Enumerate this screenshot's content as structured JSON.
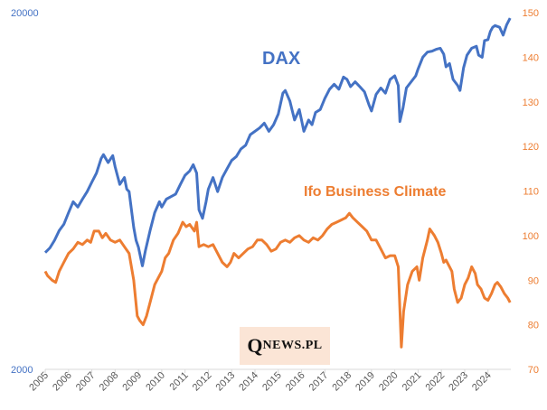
{
  "chart_data": {
    "type": "line",
    "title": "",
    "xlabel": "",
    "ylabel": "",
    "x_tick_labels": [
      "2005",
      "2006",
      "2007",
      "2008",
      "2009",
      "2010",
      "2011",
      "2012",
      "2013",
      "2014",
      "2015",
      "2016",
      "2017",
      "2018",
      "2019",
      "2020",
      "2021",
      "2022",
      "2023",
      "2024"
    ],
    "y_left": {
      "scale": "log",
      "ticks": [
        "20000",
        "2000"
      ],
      "ylim": [
        2000,
        20000
      ]
    },
    "y_right": {
      "ticks": [
        "150",
        "140",
        "130",
        "120",
        "110",
        "100",
        "90",
        "80",
        "70"
      ],
      "ylim": [
        70,
        150
      ]
    },
    "grid": false,
    "series": [
      {
        "name": "DAX",
        "axis": "left",
        "color": "#4472c4",
        "points": [
          [
            2005.0,
            4250
          ],
          [
            2005.2,
            4380
          ],
          [
            2005.4,
            4600
          ],
          [
            2005.6,
            4900
          ],
          [
            2005.8,
            5100
          ],
          [
            2006.0,
            5500
          ],
          [
            2006.2,
            5900
          ],
          [
            2006.4,
            5700
          ],
          [
            2006.6,
            6000
          ],
          [
            2006.8,
            6300
          ],
          [
            2007.0,
            6700
          ],
          [
            2007.2,
            7100
          ],
          [
            2007.4,
            7800
          ],
          [
            2007.5,
            8000
          ],
          [
            2007.7,
            7600
          ],
          [
            2007.9,
            7950
          ],
          [
            2008.0,
            7400
          ],
          [
            2008.2,
            6600
          ],
          [
            2008.4,
            6900
          ],
          [
            2008.5,
            6400
          ],
          [
            2008.6,
            6300
          ],
          [
            2008.8,
            5000
          ],
          [
            2008.9,
            4600
          ],
          [
            2009.0,
            4400
          ],
          [
            2009.17,
            3900
          ],
          [
            2009.3,
            4300
          ],
          [
            2009.5,
            4900
          ],
          [
            2009.7,
            5500
          ],
          [
            2009.9,
            5900
          ],
          [
            2010.0,
            5700
          ],
          [
            2010.2,
            6000
          ],
          [
            2010.4,
            6100
          ],
          [
            2010.6,
            6200
          ],
          [
            2010.8,
            6600
          ],
          [
            2011.0,
            7000
          ],
          [
            2011.2,
            7200
          ],
          [
            2011.35,
            7500
          ],
          [
            2011.5,
            7100
          ],
          [
            2011.6,
            5600
          ],
          [
            2011.75,
            5300
          ],
          [
            2011.9,
            5900
          ],
          [
            2012.0,
            6400
          ],
          [
            2012.2,
            6900
          ],
          [
            2012.4,
            6300
          ],
          [
            2012.6,
            6900
          ],
          [
            2012.8,
            7300
          ],
          [
            2013.0,
            7700
          ],
          [
            2013.2,
            7900
          ],
          [
            2013.4,
            8300
          ],
          [
            2013.6,
            8500
          ],
          [
            2013.8,
            9100
          ],
          [
            2014.0,
            9300
          ],
          [
            2014.2,
            9500
          ],
          [
            2014.4,
            9800
          ],
          [
            2014.6,
            9300
          ],
          [
            2014.8,
            9700
          ],
          [
            2015.0,
            10400
          ],
          [
            2015.2,
            11900
          ],
          [
            2015.3,
            12100
          ],
          [
            2015.5,
            11300
          ],
          [
            2015.7,
            10000
          ],
          [
            2015.9,
            10700
          ],
          [
            2016.0,
            10000
          ],
          [
            2016.1,
            9300
          ],
          [
            2016.3,
            10000
          ],
          [
            2016.45,
            9700
          ],
          [
            2016.6,
            10500
          ],
          [
            2016.8,
            10700
          ],
          [
            2017.0,
            11500
          ],
          [
            2017.2,
            12200
          ],
          [
            2017.4,
            12600
          ],
          [
            2017.6,
            12200
          ],
          [
            2017.8,
            13200
          ],
          [
            2017.95,
            13000
          ],
          [
            2018.1,
            12400
          ],
          [
            2018.3,
            12800
          ],
          [
            2018.5,
            12400
          ],
          [
            2018.7,
            12000
          ],
          [
            2018.9,
            11000
          ],
          [
            2019.0,
            10600
          ],
          [
            2019.2,
            11800
          ],
          [
            2019.4,
            12300
          ],
          [
            2019.6,
            11900
          ],
          [
            2019.8,
            13000
          ],
          [
            2020.0,
            13300
          ],
          [
            2020.15,
            12500
          ],
          [
            2020.22,
            9900
          ],
          [
            2020.35,
            10800
          ],
          [
            2020.5,
            12300
          ],
          [
            2020.7,
            12800
          ],
          [
            2020.9,
            13300
          ],
          [
            2021.0,
            13900
          ],
          [
            2021.2,
            15000
          ],
          [
            2021.4,
            15500
          ],
          [
            2021.6,
            15600
          ],
          [
            2021.8,
            15800
          ],
          [
            2021.95,
            15900
          ],
          [
            2022.1,
            15300
          ],
          [
            2022.2,
            14100
          ],
          [
            2022.35,
            14400
          ],
          [
            2022.5,
            13000
          ],
          [
            2022.7,
            12500
          ],
          [
            2022.8,
            12100
          ],
          [
            2022.95,
            14000
          ],
          [
            2023.1,
            15200
          ],
          [
            2023.3,
            15900
          ],
          [
            2023.5,
            16100
          ],
          [
            2023.6,
            15200
          ],
          [
            2023.75,
            15000
          ],
          [
            2023.85,
            16700
          ],
          [
            2024.0,
            16800
          ],
          [
            2024.1,
            17700
          ],
          [
            2024.2,
            18200
          ],
          [
            2024.3,
            18400
          ],
          [
            2024.5,
            18200
          ],
          [
            2024.65,
            17300
          ],
          [
            2024.8,
            18500
          ],
          [
            2024.95,
            19300
          ]
        ]
      },
      {
        "name": "Ifo Business Climate",
        "axis": "right",
        "color": "#ed7d31",
        "points": [
          [
            2005.0,
            92
          ],
          [
            2005.1,
            91
          ],
          [
            2005.3,
            90
          ],
          [
            2005.45,
            89.5
          ],
          [
            2005.6,
            92
          ],
          [
            2005.8,
            94
          ],
          [
            2006.0,
            96
          ],
          [
            2006.2,
            97
          ],
          [
            2006.4,
            98.5
          ],
          [
            2006.6,
            98
          ],
          [
            2006.8,
            99
          ],
          [
            2006.95,
            98.5
          ],
          [
            2007.1,
            101
          ],
          [
            2007.3,
            101
          ],
          [
            2007.45,
            99.5
          ],
          [
            2007.6,
            100.5
          ],
          [
            2007.8,
            99
          ],
          [
            2008.0,
            98.5
          ],
          [
            2008.2,
            99
          ],
          [
            2008.4,
            97.5
          ],
          [
            2008.6,
            96
          ],
          [
            2008.8,
            90
          ],
          [
            2008.95,
            82
          ],
          [
            2009.05,
            81
          ],
          [
            2009.2,
            80
          ],
          [
            2009.35,
            82
          ],
          [
            2009.5,
            85
          ],
          [
            2009.7,
            89
          ],
          [
            2009.9,
            91
          ],
          [
            2010.0,
            92
          ],
          [
            2010.15,
            95
          ],
          [
            2010.3,
            96
          ],
          [
            2010.5,
            99
          ],
          [
            2010.7,
            100.5
          ],
          [
            2010.9,
            103
          ],
          [
            2011.05,
            102
          ],
          [
            2011.2,
            102.5
          ],
          [
            2011.4,
            101
          ],
          [
            2011.5,
            103
          ],
          [
            2011.6,
            97.5
          ],
          [
            2011.8,
            98
          ],
          [
            2012.0,
            97.5
          ],
          [
            2012.2,
            98
          ],
          [
            2012.4,
            96
          ],
          [
            2012.6,
            94
          ],
          [
            2012.8,
            93
          ],
          [
            2012.95,
            94
          ],
          [
            2013.1,
            96
          ],
          [
            2013.3,
            95
          ],
          [
            2013.5,
            96
          ],
          [
            2013.7,
            97
          ],
          [
            2013.9,
            97.5
          ],
          [
            2014.1,
            99
          ],
          [
            2014.3,
            99
          ],
          [
            2014.5,
            98
          ],
          [
            2014.7,
            96.5
          ],
          [
            2014.9,
            97
          ],
          [
            2015.1,
            98.5
          ],
          [
            2015.3,
            99
          ],
          [
            2015.5,
            98.5
          ],
          [
            2015.7,
            99.5
          ],
          [
            2015.9,
            100
          ],
          [
            2016.1,
            99
          ],
          [
            2016.3,
            98.5
          ],
          [
            2016.5,
            99.5
          ],
          [
            2016.7,
            99
          ],
          [
            2016.9,
            100
          ],
          [
            2017.1,
            101.5
          ],
          [
            2017.3,
            102.5
          ],
          [
            2017.5,
            103
          ],
          [
            2017.7,
            103.5
          ],
          [
            2017.9,
            104
          ],
          [
            2018.05,
            105
          ],
          [
            2018.2,
            104
          ],
          [
            2018.4,
            103
          ],
          [
            2018.6,
            102
          ],
          [
            2018.8,
            101
          ],
          [
            2019.0,
            99
          ],
          [
            2019.2,
            99
          ],
          [
            2019.4,
            97
          ],
          [
            2019.6,
            95
          ],
          [
            2019.8,
            95.5
          ],
          [
            2020.0,
            95.5
          ],
          [
            2020.15,
            93
          ],
          [
            2020.28,
            75
          ],
          [
            2020.38,
            83
          ],
          [
            2020.55,
            89
          ],
          [
            2020.75,
            92
          ],
          [
            2020.95,
            93
          ],
          [
            2021.05,
            90
          ],
          [
            2021.2,
            95
          ],
          [
            2021.4,
            99
          ],
          [
            2021.5,
            101.5
          ],
          [
            2021.7,
            100
          ],
          [
            2021.85,
            98.5
          ],
          [
            2022.0,
            96
          ],
          [
            2022.1,
            94
          ],
          [
            2022.2,
            94.5
          ],
          [
            2022.35,
            93
          ],
          [
            2022.45,
            92
          ],
          [
            2022.55,
            88
          ],
          [
            2022.7,
            85
          ],
          [
            2022.85,
            86
          ],
          [
            2023.0,
            89
          ],
          [
            2023.15,
            90.5
          ],
          [
            2023.3,
            93
          ],
          [
            2023.45,
            91.5
          ],
          [
            2023.55,
            89
          ],
          [
            2023.7,
            88
          ],
          [
            2023.85,
            86
          ],
          [
            2024.0,
            85.5
          ],
          [
            2024.15,
            87
          ],
          [
            2024.3,
            89
          ],
          [
            2024.4,
            89.5
          ],
          [
            2024.55,
            88.5
          ],
          [
            2024.7,
            87
          ],
          [
            2024.85,
            86
          ],
          [
            2024.95,
            85
          ]
        ]
      }
    ],
    "annotations": [
      "DAX",
      "Ifo Business Climate"
    ]
  },
  "logo": {
    "q": "Q",
    "rest": "NEWS.PL"
  }
}
